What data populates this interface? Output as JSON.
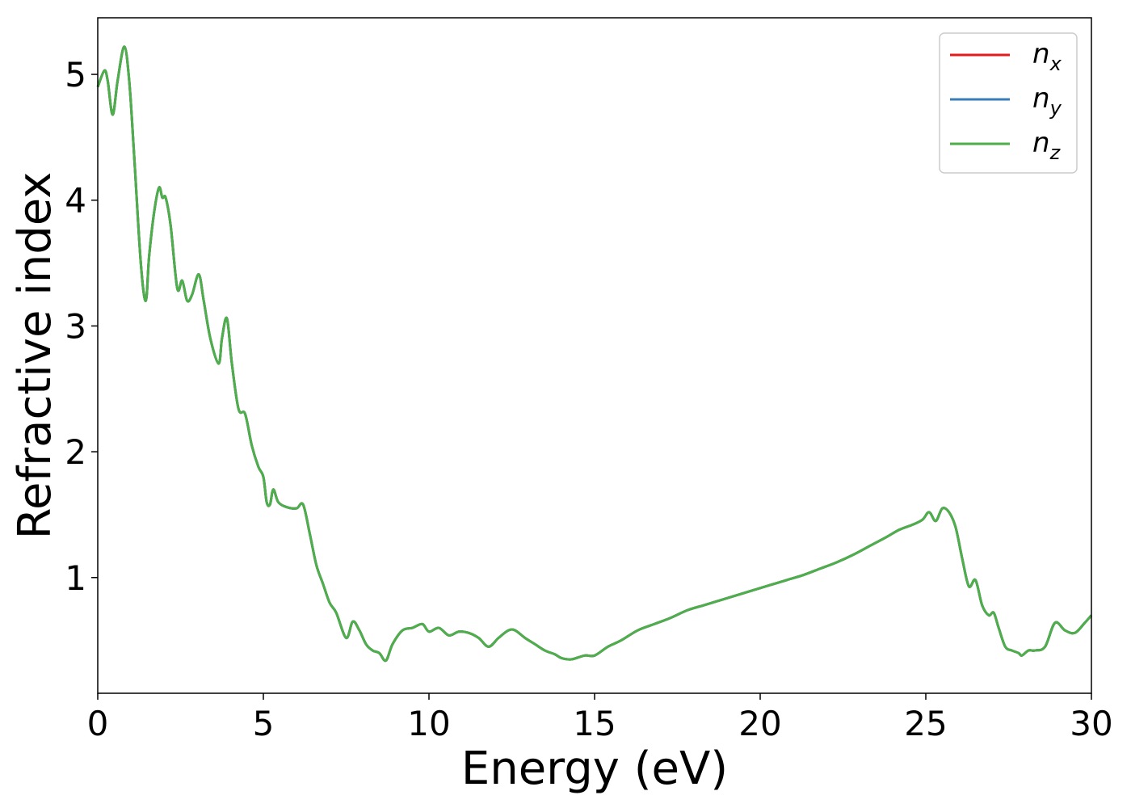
{
  "chart_data": {
    "type": "line",
    "xlabel": "Energy (eV)",
    "ylabel": "Refractive index",
    "xlim": [
      0,
      30
    ],
    "ylim": [
      0.08,
      5.45
    ],
    "xticks": [
      0,
      5,
      10,
      15,
      20,
      25,
      30
    ],
    "yticks": [
      1,
      2,
      3,
      4,
      5
    ],
    "grid": false,
    "legend_position": "top-right",
    "series": [
      {
        "name": "n",
        "subscript": "x",
        "color": "#e41a1c",
        "x": [
          0,
          0.2,
          0.3,
          0.45,
          0.6,
          0.8,
          0.95,
          1.1,
          1.3,
          1.45,
          1.55,
          1.7,
          1.85,
          1.95,
          2.05,
          2.2,
          2.4,
          2.55,
          2.7,
          2.85,
          3.05,
          3.2,
          3.4,
          3.65,
          3.75,
          3.9,
          4.05,
          4.25,
          4.45,
          4.65,
          4.85,
          5.0,
          5.1,
          5.2,
          5.3,
          5.45,
          5.7,
          6.0,
          6.2,
          6.4,
          6.6,
          6.8,
          7.0,
          7.2,
          7.5,
          7.7,
          7.9,
          8.1,
          8.3,
          8.5,
          8.7,
          8.9,
          9.2,
          9.5,
          9.8,
          10.0,
          10.3,
          10.6,
          10.9,
          11.2,
          11.5,
          11.8,
          12.1,
          12.4,
          12.6,
          12.9,
          13.2,
          13.5,
          13.8,
          14.0,
          14.3,
          14.7,
          15.0,
          15.4,
          15.8,
          16.3,
          16.8,
          17.3,
          17.8,
          18.3,
          18.8,
          19.3,
          19.8,
          20.3,
          20.8,
          21.3,
          21.8,
          22.3,
          22.8,
          23.3,
          23.8,
          24.2,
          24.6,
          24.9,
          25.1,
          25.3,
          25.5,
          25.7,
          25.9,
          26.1,
          26.3,
          26.5,
          26.7,
          26.9,
          27.05,
          27.2,
          27.4,
          27.6,
          27.8,
          27.9,
          28.1,
          28.3,
          28.6,
          28.9,
          29.2,
          29.5,
          29.8,
          30.0
        ],
        "y": [
          4.9,
          5.03,
          4.95,
          4.68,
          4.95,
          5.22,
          4.95,
          4.35,
          3.5,
          3.2,
          3.55,
          3.9,
          4.1,
          4.02,
          4.02,
          3.8,
          3.3,
          3.36,
          3.2,
          3.25,
          3.41,
          3.2,
          2.9,
          2.7,
          2.9,
          3.06,
          2.7,
          2.34,
          2.3,
          2.05,
          1.88,
          1.8,
          1.6,
          1.58,
          1.7,
          1.6,
          1.56,
          1.55,
          1.58,
          1.35,
          1.1,
          0.95,
          0.8,
          0.72,
          0.52,
          0.65,
          0.58,
          0.47,
          0.42,
          0.4,
          0.34,
          0.47,
          0.58,
          0.6,
          0.63,
          0.57,
          0.6,
          0.54,
          0.57,
          0.56,
          0.52,
          0.45,
          0.52,
          0.58,
          0.58,
          0.52,
          0.47,
          0.42,
          0.39,
          0.36,
          0.35,
          0.38,
          0.38,
          0.45,
          0.5,
          0.58,
          0.63,
          0.68,
          0.74,
          0.78,
          0.82,
          0.86,
          0.9,
          0.94,
          0.98,
          1.02,
          1.07,
          1.12,
          1.18,
          1.25,
          1.32,
          1.38,
          1.42,
          1.46,
          1.52,
          1.45,
          1.55,
          1.52,
          1.4,
          1.15,
          0.93,
          0.98,
          0.78,
          0.7,
          0.72,
          0.6,
          0.45,
          0.42,
          0.4,
          0.38,
          0.42,
          0.42,
          0.45,
          0.64,
          0.58,
          0.56,
          0.64,
          0.7
        ]
      },
      {
        "name": "n",
        "subscript": "y",
        "color": "#377eb8",
        "x": [
          0,
          0.2,
          0.3,
          0.45,
          0.6,
          0.8,
          0.95,
          1.1,
          1.3,
          1.45,
          1.55,
          1.7,
          1.85,
          1.95,
          2.05,
          2.2,
          2.4,
          2.55,
          2.7,
          2.85,
          3.05,
          3.2,
          3.4,
          3.65,
          3.75,
          3.9,
          4.05,
          4.25,
          4.45,
          4.65,
          4.85,
          5.0,
          5.1,
          5.2,
          5.3,
          5.45,
          5.7,
          6.0,
          6.2,
          6.4,
          6.6,
          6.8,
          7.0,
          7.2,
          7.5,
          7.7,
          7.9,
          8.1,
          8.3,
          8.5,
          8.7,
          8.9,
          9.2,
          9.5,
          9.8,
          10.0,
          10.3,
          10.6,
          10.9,
          11.2,
          11.5,
          11.8,
          12.1,
          12.4,
          12.6,
          12.9,
          13.2,
          13.5,
          13.8,
          14.0,
          14.3,
          14.7,
          15.0,
          15.4,
          15.8,
          16.3,
          16.8,
          17.3,
          17.8,
          18.3,
          18.8,
          19.3,
          19.8,
          20.3,
          20.8,
          21.3,
          21.8,
          22.3,
          22.8,
          23.3,
          23.8,
          24.2,
          24.6,
          24.9,
          25.1,
          25.3,
          25.5,
          25.7,
          25.9,
          26.1,
          26.3,
          26.5,
          26.7,
          26.9,
          27.05,
          27.2,
          27.4,
          27.6,
          27.8,
          27.9,
          28.1,
          28.3,
          28.6,
          28.9,
          29.2,
          29.5,
          29.8,
          30.0
        ],
        "y": [
          4.9,
          5.03,
          4.95,
          4.68,
          4.95,
          5.22,
          4.95,
          4.35,
          3.5,
          3.2,
          3.55,
          3.9,
          4.1,
          4.02,
          4.02,
          3.8,
          3.3,
          3.36,
          3.2,
          3.25,
          3.41,
          3.2,
          2.9,
          2.7,
          2.9,
          3.06,
          2.7,
          2.34,
          2.3,
          2.05,
          1.88,
          1.8,
          1.6,
          1.58,
          1.7,
          1.6,
          1.56,
          1.55,
          1.58,
          1.35,
          1.1,
          0.95,
          0.8,
          0.72,
          0.52,
          0.65,
          0.58,
          0.47,
          0.42,
          0.4,
          0.34,
          0.47,
          0.58,
          0.6,
          0.63,
          0.57,
          0.6,
          0.54,
          0.57,
          0.56,
          0.52,
          0.45,
          0.52,
          0.58,
          0.58,
          0.52,
          0.47,
          0.42,
          0.39,
          0.36,
          0.35,
          0.38,
          0.38,
          0.45,
          0.5,
          0.58,
          0.63,
          0.68,
          0.74,
          0.78,
          0.82,
          0.86,
          0.9,
          0.94,
          0.98,
          1.02,
          1.07,
          1.12,
          1.18,
          1.25,
          1.32,
          1.38,
          1.42,
          1.46,
          1.52,
          1.45,
          1.55,
          1.52,
          1.4,
          1.15,
          0.93,
          0.98,
          0.78,
          0.7,
          0.72,
          0.6,
          0.45,
          0.42,
          0.4,
          0.38,
          0.42,
          0.42,
          0.45,
          0.64,
          0.58,
          0.56,
          0.64,
          0.7
        ]
      },
      {
        "name": "n",
        "subscript": "z",
        "color": "#4daf4a",
        "x": [
          0,
          0.2,
          0.3,
          0.45,
          0.6,
          0.8,
          0.95,
          1.1,
          1.3,
          1.45,
          1.55,
          1.7,
          1.85,
          1.95,
          2.05,
          2.2,
          2.4,
          2.55,
          2.7,
          2.85,
          3.05,
          3.2,
          3.4,
          3.65,
          3.75,
          3.9,
          4.05,
          4.25,
          4.45,
          4.65,
          4.85,
          5.0,
          5.1,
          5.2,
          5.3,
          5.45,
          5.7,
          6.0,
          6.2,
          6.4,
          6.6,
          6.8,
          7.0,
          7.2,
          7.5,
          7.7,
          7.9,
          8.1,
          8.3,
          8.5,
          8.7,
          8.9,
          9.2,
          9.5,
          9.8,
          10.0,
          10.3,
          10.6,
          10.9,
          11.2,
          11.5,
          11.8,
          12.1,
          12.4,
          12.6,
          12.9,
          13.2,
          13.5,
          13.8,
          14.0,
          14.3,
          14.7,
          15.0,
          15.4,
          15.8,
          16.3,
          16.8,
          17.3,
          17.8,
          18.3,
          18.8,
          19.3,
          19.8,
          20.3,
          20.8,
          21.3,
          21.8,
          22.3,
          22.8,
          23.3,
          23.8,
          24.2,
          24.6,
          24.9,
          25.1,
          25.3,
          25.5,
          25.7,
          25.9,
          26.1,
          26.3,
          26.5,
          26.7,
          26.9,
          27.05,
          27.2,
          27.4,
          27.6,
          27.8,
          27.9,
          28.1,
          28.3,
          28.6,
          28.9,
          29.2,
          29.5,
          29.8,
          30.0
        ],
        "y": [
          4.9,
          5.03,
          4.95,
          4.68,
          4.95,
          5.22,
          4.95,
          4.35,
          3.5,
          3.2,
          3.55,
          3.9,
          4.1,
          4.02,
          4.02,
          3.8,
          3.3,
          3.36,
          3.2,
          3.25,
          3.41,
          3.2,
          2.9,
          2.7,
          2.9,
          3.06,
          2.7,
          2.34,
          2.3,
          2.05,
          1.88,
          1.8,
          1.6,
          1.58,
          1.7,
          1.6,
          1.56,
          1.55,
          1.58,
          1.35,
          1.1,
          0.95,
          0.8,
          0.72,
          0.52,
          0.65,
          0.58,
          0.47,
          0.42,
          0.4,
          0.34,
          0.47,
          0.58,
          0.6,
          0.63,
          0.57,
          0.6,
          0.54,
          0.57,
          0.56,
          0.52,
          0.45,
          0.52,
          0.58,
          0.58,
          0.52,
          0.47,
          0.42,
          0.39,
          0.36,
          0.35,
          0.38,
          0.38,
          0.45,
          0.5,
          0.58,
          0.63,
          0.68,
          0.74,
          0.78,
          0.82,
          0.86,
          0.9,
          0.94,
          0.98,
          1.02,
          1.07,
          1.12,
          1.18,
          1.25,
          1.32,
          1.38,
          1.42,
          1.46,
          1.52,
          1.45,
          1.55,
          1.52,
          1.4,
          1.15,
          0.93,
          0.98,
          0.78,
          0.7,
          0.72,
          0.6,
          0.45,
          0.42,
          0.4,
          0.38,
          0.42,
          0.42,
          0.45,
          0.64,
          0.58,
          0.56,
          0.64,
          0.7
        ]
      }
    ]
  }
}
